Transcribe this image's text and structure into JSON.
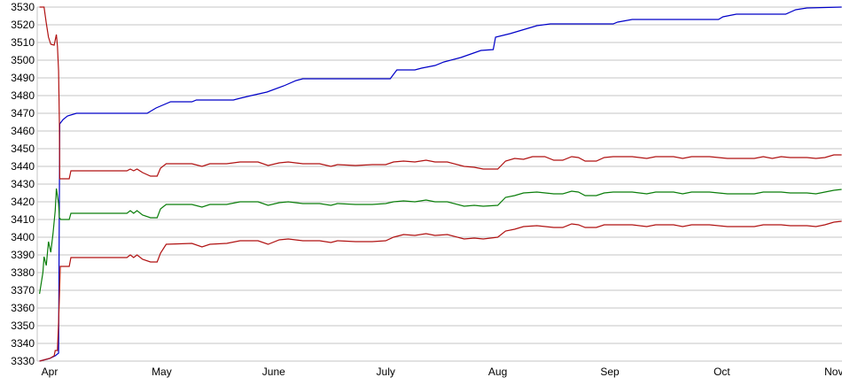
{
  "chart_data": {
    "type": "line",
    "title": "",
    "legend": "none",
    "grid": "horizontal",
    "background": "#ffffff",
    "grid_color": "#c6c6c6",
    "axis_line_color": "#c6c6c6",
    "label_color": "#000000",
    "x_axis": {
      "label": "",
      "tick_labels": [
        "Apr",
        "May",
        "June",
        "July",
        "Aug",
        "Sep",
        "Oct",
        "Nov"
      ],
      "tick_positions": [
        0,
        1,
        2,
        3,
        4,
        5,
        6,
        7
      ],
      "range": [
        -0.12,
        7.07
      ]
    },
    "y_axis": {
      "label": "",
      "min": 3330,
      "max": 3530,
      "tick_step": 10,
      "tick_labels": [
        "3330",
        "3340",
        "3350",
        "3360",
        "3370",
        "3380",
        "3390",
        "3400",
        "3410",
        "3420",
        "3430",
        "3440",
        "3450",
        "3460",
        "3470",
        "3480",
        "3490",
        "3500",
        "3510",
        "3520",
        "3530"
      ]
    },
    "series": [
      {
        "name": "blue-line",
        "color": "#0000c8",
        "points": [
          [
            -0.09,
            3330
          ],
          [
            0.0,
            3331.5
          ],
          [
            0.05,
            3333
          ],
          [
            0.08,
            3334.5
          ],
          [
            0.09,
            3464
          ],
          [
            0.12,
            3466.5
          ],
          [
            0.16,
            3468.5
          ],
          [
            0.24,
            3470
          ],
          [
            0.87,
            3470
          ],
          [
            0.95,
            3473
          ],
          [
            1.08,
            3476.5
          ],
          [
            1.27,
            3476.5
          ],
          [
            1.31,
            3477.5
          ],
          [
            1.64,
            3477.5
          ],
          [
            1.7,
            3478.5
          ],
          [
            1.8,
            3480
          ],
          [
            1.94,
            3482
          ],
          [
            2.09,
            3485.5
          ],
          [
            2.2,
            3488.5
          ],
          [
            2.26,
            3489.5
          ],
          [
            3.04,
            3489.5
          ],
          [
            3.07,
            3492
          ],
          [
            3.1,
            3494.5
          ],
          [
            3.26,
            3494.5
          ],
          [
            3.32,
            3495.5
          ],
          [
            3.44,
            3497
          ],
          [
            3.52,
            3499
          ],
          [
            3.67,
            3501.5
          ],
          [
            3.76,
            3503.5
          ],
          [
            3.85,
            3505.5
          ],
          [
            3.96,
            3506
          ],
          [
            3.98,
            3513
          ],
          [
            4.11,
            3515
          ],
          [
            4.19,
            3516.5
          ],
          [
            4.27,
            3518
          ],
          [
            4.35,
            3519.5
          ],
          [
            4.47,
            3520.5
          ],
          [
            5.03,
            3520.5
          ],
          [
            5.07,
            3521.5
          ],
          [
            5.2,
            3523
          ],
          [
            5.97,
            3523
          ],
          [
            6.01,
            3524.5
          ],
          [
            6.13,
            3526
          ],
          [
            6.57,
            3526
          ],
          [
            6.66,
            3528.5
          ],
          [
            6.76,
            3529.5
          ],
          [
            7.07,
            3530
          ]
        ]
      },
      {
        "name": "red-upper-line",
        "color": "#b01212",
        "points": [
          [
            -0.09,
            3530
          ],
          [
            -0.05,
            3530
          ],
          [
            -0.03,
            3521
          ],
          [
            -0.01,
            3513
          ],
          [
            0.01,
            3509
          ],
          [
            0.04,
            3508.5
          ],
          [
            0.06,
            3514.5
          ],
          [
            0.07,
            3508
          ],
          [
            0.08,
            3494
          ],
          [
            0.087,
            3465
          ],
          [
            0.09,
            3433
          ],
          [
            0.175,
            3433
          ],
          [
            0.19,
            3437.5
          ],
          [
            0.69,
            3437.5
          ],
          [
            0.72,
            3438.5
          ],
          [
            0.75,
            3437.5
          ],
          [
            0.78,
            3438.5
          ],
          [
            0.83,
            3436.5
          ],
          [
            0.9,
            3434.5
          ],
          [
            0.96,
            3434.5
          ],
          [
            0.99,
            3439
          ],
          [
            1.04,
            3441.5
          ],
          [
            1.27,
            3441.5
          ],
          [
            1.36,
            3440
          ],
          [
            1.43,
            3441.5
          ],
          [
            1.58,
            3441.5
          ],
          [
            1.7,
            3442.5
          ],
          [
            1.86,
            3442.5
          ],
          [
            1.95,
            3440.5
          ],
          [
            2.05,
            3442
          ],
          [
            2.13,
            3442.5
          ],
          [
            2.26,
            3441.5
          ],
          [
            2.41,
            3441.5
          ],
          [
            2.51,
            3440
          ],
          [
            2.57,
            3441
          ],
          [
            2.73,
            3440.5
          ],
          [
            2.88,
            3441
          ],
          [
            3.0,
            3441
          ],
          [
            3.07,
            3442.5
          ],
          [
            3.16,
            3443
          ],
          [
            3.26,
            3442.5
          ],
          [
            3.36,
            3443.5
          ],
          [
            3.44,
            3442.5
          ],
          [
            3.55,
            3442.5
          ],
          [
            3.7,
            3440
          ],
          [
            3.79,
            3439.5
          ],
          [
            3.87,
            3438.5
          ],
          [
            4.0,
            3438.5
          ],
          [
            4.07,
            3443
          ],
          [
            4.15,
            3444.5
          ],
          [
            4.23,
            3444
          ],
          [
            4.31,
            3445.5
          ],
          [
            4.42,
            3445.5
          ],
          [
            4.5,
            3443.5
          ],
          [
            4.58,
            3443.5
          ],
          [
            4.66,
            3445.5
          ],
          [
            4.72,
            3445
          ],
          [
            4.78,
            3443
          ],
          [
            4.88,
            3443
          ],
          [
            4.95,
            3445
          ],
          [
            5.03,
            3445.5
          ],
          [
            5.2,
            3445.5
          ],
          [
            5.33,
            3444.5
          ],
          [
            5.41,
            3445.5
          ],
          [
            5.57,
            3445.5
          ],
          [
            5.65,
            3444.5
          ],
          [
            5.73,
            3445.5
          ],
          [
            5.89,
            3445.5
          ],
          [
            6.05,
            3444.5
          ],
          [
            6.29,
            3444.5
          ],
          [
            6.37,
            3445.5
          ],
          [
            6.45,
            3444.5
          ],
          [
            6.53,
            3445.5
          ],
          [
            6.61,
            3445
          ],
          [
            6.76,
            3445
          ],
          [
            6.84,
            3444.5
          ],
          [
            6.92,
            3445
          ],
          [
            7.0,
            3446.5
          ],
          [
            7.07,
            3446.5
          ]
        ]
      },
      {
        "name": "green-line",
        "color": "#0b7e0b",
        "points": [
          [
            -0.09,
            3368
          ],
          [
            -0.06,
            3380
          ],
          [
            -0.05,
            3389
          ],
          [
            -0.03,
            3384
          ],
          [
            -0.01,
            3397.5
          ],
          [
            0.01,
            3391.5
          ],
          [
            0.03,
            3402
          ],
          [
            0.05,
            3415
          ],
          [
            0.06,
            3427.5
          ],
          [
            0.08,
            3419
          ],
          [
            0.087,
            3411
          ],
          [
            0.1,
            3410
          ],
          [
            0.175,
            3410
          ],
          [
            0.19,
            3413.5
          ],
          [
            0.69,
            3413.5
          ],
          [
            0.72,
            3415
          ],
          [
            0.75,
            3413.5
          ],
          [
            0.78,
            3415
          ],
          [
            0.83,
            3412.5
          ],
          [
            0.9,
            3411
          ],
          [
            0.96,
            3411
          ],
          [
            0.99,
            3416
          ],
          [
            1.04,
            3418.5
          ],
          [
            1.27,
            3418.5
          ],
          [
            1.36,
            3417
          ],
          [
            1.43,
            3418.5
          ],
          [
            1.58,
            3418.5
          ],
          [
            1.7,
            3420
          ],
          [
            1.86,
            3420
          ],
          [
            1.95,
            3418
          ],
          [
            2.05,
            3419.5
          ],
          [
            2.13,
            3420
          ],
          [
            2.26,
            3419
          ],
          [
            2.41,
            3419
          ],
          [
            2.51,
            3418
          ],
          [
            2.57,
            3419
          ],
          [
            2.73,
            3418.5
          ],
          [
            2.88,
            3418.5
          ],
          [
            3.0,
            3419
          ],
          [
            3.07,
            3420
          ],
          [
            3.16,
            3420.5
          ],
          [
            3.26,
            3420
          ],
          [
            3.36,
            3421
          ],
          [
            3.44,
            3420
          ],
          [
            3.55,
            3420
          ],
          [
            3.7,
            3417.5
          ],
          [
            3.79,
            3418
          ],
          [
            3.87,
            3417.5
          ],
          [
            4.0,
            3418
          ],
          [
            4.07,
            3422.5
          ],
          [
            4.15,
            3423.5
          ],
          [
            4.23,
            3425
          ],
          [
            4.35,
            3425.5
          ],
          [
            4.5,
            3424.5
          ],
          [
            4.58,
            3424.5
          ],
          [
            4.66,
            3426
          ],
          [
            4.72,
            3425.5
          ],
          [
            4.78,
            3423.5
          ],
          [
            4.88,
            3423.5
          ],
          [
            4.95,
            3425
          ],
          [
            5.03,
            3425.5
          ],
          [
            5.2,
            3425.5
          ],
          [
            5.33,
            3424.5
          ],
          [
            5.41,
            3425.5
          ],
          [
            5.57,
            3425.5
          ],
          [
            5.65,
            3424.5
          ],
          [
            5.73,
            3425.5
          ],
          [
            5.89,
            3425.5
          ],
          [
            6.05,
            3424.5
          ],
          [
            6.29,
            3424.5
          ],
          [
            6.37,
            3425.5
          ],
          [
            6.53,
            3425.5
          ],
          [
            6.61,
            3425
          ],
          [
            6.76,
            3425
          ],
          [
            6.84,
            3424.5
          ],
          [
            6.92,
            3425.5
          ],
          [
            7.0,
            3426.5
          ],
          [
            7.07,
            3427
          ]
        ]
      },
      {
        "name": "red-lower-line",
        "color": "#b01212",
        "points": [
          [
            -0.09,
            3330
          ],
          [
            0.0,
            3331.5
          ],
          [
            0.04,
            3333
          ],
          [
            0.05,
            3336
          ],
          [
            0.07,
            3336
          ],
          [
            0.08,
            3352
          ],
          [
            0.087,
            3366
          ],
          [
            0.095,
            3383.5
          ],
          [
            0.175,
            3383.5
          ],
          [
            0.19,
            3388.5
          ],
          [
            0.69,
            3388.5
          ],
          [
            0.72,
            3390
          ],
          [
            0.75,
            3388.5
          ],
          [
            0.78,
            3390
          ],
          [
            0.83,
            3387.5
          ],
          [
            0.9,
            3386
          ],
          [
            0.96,
            3386
          ],
          [
            0.99,
            3391
          ],
          [
            1.04,
            3396
          ],
          [
            1.27,
            3396.5
          ],
          [
            1.36,
            3394.5
          ],
          [
            1.43,
            3396
          ],
          [
            1.58,
            3396.5
          ],
          [
            1.7,
            3398
          ],
          [
            1.86,
            3398
          ],
          [
            1.95,
            3396
          ],
          [
            2.05,
            3398.5
          ],
          [
            2.13,
            3399
          ],
          [
            2.26,
            3398
          ],
          [
            2.41,
            3398
          ],
          [
            2.51,
            3397
          ],
          [
            2.57,
            3398
          ],
          [
            2.73,
            3397.5
          ],
          [
            2.88,
            3397.5
          ],
          [
            3.0,
            3398
          ],
          [
            3.07,
            3400
          ],
          [
            3.16,
            3401.5
          ],
          [
            3.26,
            3401
          ],
          [
            3.36,
            3402
          ],
          [
            3.44,
            3401
          ],
          [
            3.55,
            3401.5
          ],
          [
            3.7,
            3399
          ],
          [
            3.79,
            3399.5
          ],
          [
            3.87,
            3399
          ],
          [
            4.0,
            3400
          ],
          [
            4.07,
            3403.5
          ],
          [
            4.15,
            3404.5
          ],
          [
            4.23,
            3406
          ],
          [
            4.35,
            3406.5
          ],
          [
            4.5,
            3405.5
          ],
          [
            4.58,
            3405.5
          ],
          [
            4.66,
            3407.5
          ],
          [
            4.72,
            3407
          ],
          [
            4.78,
            3405.5
          ],
          [
            4.88,
            3405.5
          ],
          [
            4.95,
            3407
          ],
          [
            5.03,
            3407
          ],
          [
            5.2,
            3407
          ],
          [
            5.33,
            3406
          ],
          [
            5.41,
            3407
          ],
          [
            5.57,
            3407
          ],
          [
            5.65,
            3406
          ],
          [
            5.73,
            3407
          ],
          [
            5.89,
            3407
          ],
          [
            6.05,
            3406
          ],
          [
            6.29,
            3406
          ],
          [
            6.37,
            3407
          ],
          [
            6.53,
            3407
          ],
          [
            6.61,
            3406.5
          ],
          [
            6.76,
            3406.5
          ],
          [
            6.84,
            3406
          ],
          [
            6.92,
            3407
          ],
          [
            7.0,
            3408.5
          ],
          [
            7.07,
            3409
          ]
        ]
      }
    ]
  }
}
